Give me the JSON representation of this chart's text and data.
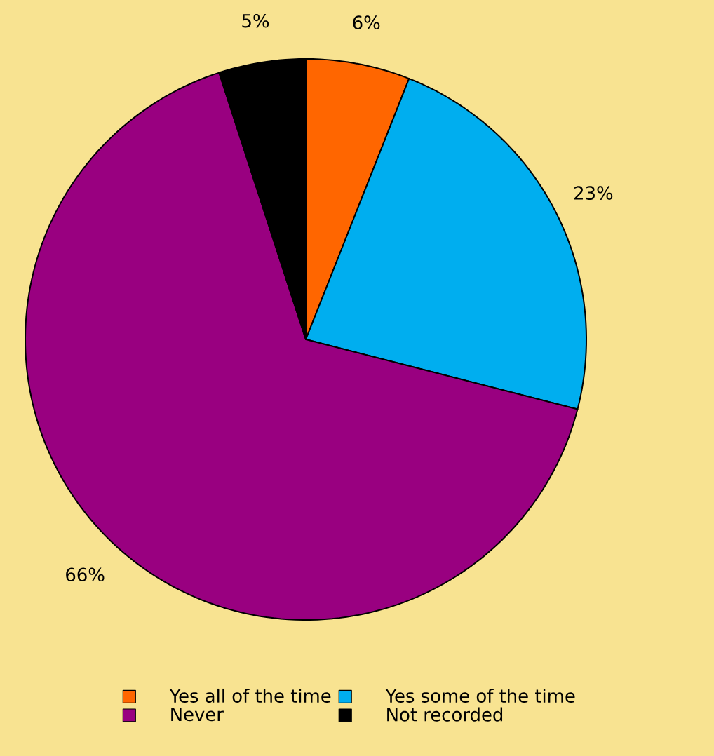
{
  "chart_data": {
    "type": "pie",
    "categories": [
      "Yes all of the time",
      "Yes some of the time",
      "Never",
      "Not recorded"
    ],
    "values": [
      6,
      23,
      66,
      5
    ],
    "colors": [
      "#ff6600",
      "#00aeef",
      "#990080",
      "#000000"
    ],
    "value_labels": [
      "6%",
      "23%",
      "66%",
      "5%"
    ],
    "legend": "bottom"
  }
}
